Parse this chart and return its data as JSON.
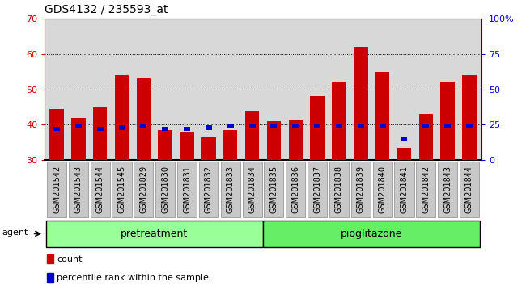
{
  "title": "GDS4132 / 235593_at",
  "samples": [
    "GSM201542",
    "GSM201543",
    "GSM201544",
    "GSM201545",
    "GSM201829",
    "GSM201830",
    "GSM201831",
    "GSM201832",
    "GSM201833",
    "GSM201834",
    "GSM201835",
    "GSM201836",
    "GSM201837",
    "GSM201838",
    "GSM201839",
    "GSM201840",
    "GSM201841",
    "GSM201842",
    "GSM201843",
    "GSM201844"
  ],
  "count_values": [
    44.5,
    42.0,
    45.0,
    54.0,
    53.0,
    38.5,
    38.0,
    36.5,
    38.5,
    44.0,
    41.0,
    41.5,
    48.0,
    52.0,
    62.0,
    55.0,
    33.5,
    43.0,
    52.0,
    54.0
  ],
  "percentile_values": [
    22,
    24,
    22,
    23,
    24,
    22,
    22,
    23,
    24,
    24,
    24,
    24,
    24,
    24,
    24,
    24,
    15,
    24,
    24,
    24
  ],
  "bar_bottom": 30,
  "ylim_left": [
    30,
    70
  ],
  "ylim_right": [
    0,
    100
  ],
  "yticks_left": [
    30,
    40,
    50,
    60,
    70
  ],
  "yticks_right": [
    0,
    25,
    50,
    75,
    100
  ],
  "ytick_labels_right": [
    "0",
    "25",
    "50",
    "75",
    "100%"
  ],
  "count_color": "#cc0000",
  "percentile_color": "#0000cc",
  "bar_width": 0.65,
  "groups": [
    {
      "label": "pretreatment",
      "start": 0,
      "end": 9,
      "color": "#99ff99"
    },
    {
      "label": "pioglitazone",
      "start": 10,
      "end": 19,
      "color": "#66ee66"
    }
  ],
  "agent_label": "agent",
  "grid_color": "black",
  "bg_color": "#d8d8d8",
  "tick_bg_color": "#c8c8c8",
  "legend_count": "count",
  "legend_percentile": "percentile rank within the sample",
  "title_fontsize": 10,
  "tick_fontsize": 7,
  "pretreatment_n": 10,
  "pioglitazone_n": 10
}
